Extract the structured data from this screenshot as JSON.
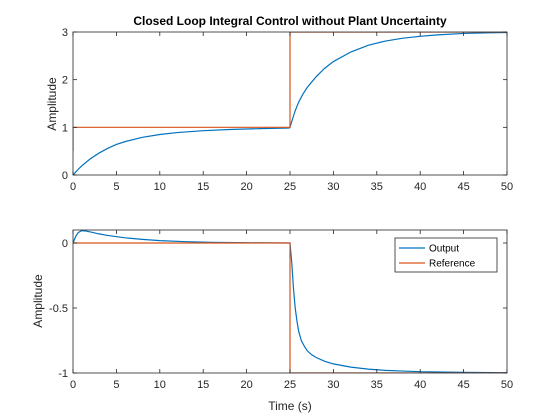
{
  "figure": {
    "background": "#ffffff",
    "axis_color": "#262626"
  },
  "chart_data": [
    {
      "type": "line",
      "title": "Closed Loop Integral Control without Plant Uncertainty",
      "xlabel": "",
      "ylabel": "Amplitude",
      "xlim": [
        0,
        50
      ],
      "ylim": [
        0,
        3
      ],
      "xticks": [
        0,
        5,
        10,
        15,
        20,
        25,
        30,
        35,
        40,
        45,
        50
      ],
      "yticks": [
        0,
        1,
        2,
        3
      ],
      "xtick_labels": [
        "0",
        "5",
        "10",
        "15",
        "20",
        "25",
        "30",
        "35",
        "40",
        "45",
        "50"
      ],
      "ytick_labels": [
        "0",
        "1",
        "2",
        "3"
      ],
      "grid": false,
      "series": [
        {
          "color": "#0072BD",
          "x": [
            0,
            0.5,
            1,
            2,
            3,
            4,
            5,
            6,
            8,
            10,
            12,
            15,
            18,
            20,
            22,
            24.9,
            25,
            25.3,
            25.6,
            26,
            26.5,
            27,
            28,
            29,
            30,
            32,
            34,
            36,
            38,
            40,
            42,
            45,
            48,
            50
          ],
          "y": [
            0,
            0.1,
            0.19,
            0.34,
            0.46,
            0.56,
            0.64,
            0.7,
            0.79,
            0.85,
            0.89,
            0.93,
            0.955,
            0.965,
            0.975,
            0.985,
            1.0,
            1.18,
            1.35,
            1.53,
            1.7,
            1.84,
            2.06,
            2.24,
            2.38,
            2.58,
            2.72,
            2.81,
            2.87,
            2.91,
            2.94,
            2.97,
            2.985,
            2.99
          ]
        },
        {
          "color": "#D95319",
          "x": [
            0,
            0,
            25,
            25,
            50
          ],
          "y": [
            0.5,
            1,
            1,
            3,
            3
          ]
        }
      ]
    },
    {
      "type": "line",
      "title": "",
      "xlabel": "Time (s)",
      "ylabel": "Amplitude",
      "xlim": [
        0,
        50
      ],
      "ylim": [
        -1,
        0.1
      ],
      "xticks": [
        0,
        5,
        10,
        15,
        20,
        25,
        30,
        35,
        40,
        45,
        50
      ],
      "yticks": [
        -1,
        -0.5,
        0
      ],
      "xtick_labels": [
        "0",
        "5",
        "10",
        "15",
        "20",
        "25",
        "30",
        "35",
        "40",
        "45",
        "50"
      ],
      "ytick_labels": [
        "-1",
        "-0.5",
        "0"
      ],
      "grid": false,
      "legend_position": "top-right",
      "series": [
        {
          "name": "Output",
          "color": "#0072BD",
          "x": [
            0,
            0.3,
            0.6,
            1,
            1.5,
            2,
            3,
            4,
            6,
            8,
            10,
            13,
            16,
            20,
            24.9,
            25,
            25.2,
            25.4,
            25.6,
            25.8,
            26,
            26.3,
            26.7,
            27,
            27.5,
            28,
            29,
            30,
            32,
            34,
            36,
            38,
            40,
            45,
            50
          ],
          "y": [
            0,
            0.05,
            0.08,
            0.095,
            0.092,
            0.085,
            0.07,
            0.058,
            0.04,
            0.028,
            0.018,
            0.01,
            0.005,
            0.002,
            0.0,
            0.0,
            -0.15,
            -0.35,
            -0.5,
            -0.6,
            -0.68,
            -0.75,
            -0.8,
            -0.83,
            -0.86,
            -0.88,
            -0.91,
            -0.93,
            -0.955,
            -0.97,
            -0.98,
            -0.985,
            -0.99,
            -0.995,
            -0.998
          ]
        },
        {
          "name": "Reference",
          "color": "#D95319",
          "x": [
            0,
            25,
            25,
            50
          ],
          "y": [
            0,
            0,
            -1,
            -1
          ]
        }
      ]
    }
  ]
}
